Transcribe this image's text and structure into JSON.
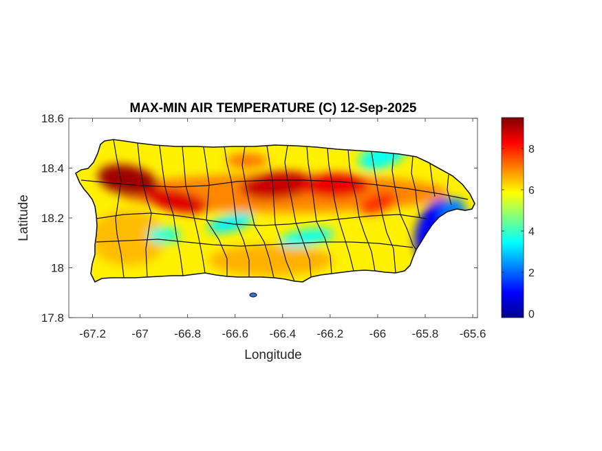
{
  "chart_data": {
    "type": "heatmap",
    "title": "MAX-MIN AIR TEMPERATURE (C) 12-Sep-2025",
    "xlabel": "Longitude",
    "ylabel": "Latitude",
    "xlim": [
      -67.3,
      -65.58
    ],
    "ylim": [
      17.8,
      18.6
    ],
    "xticks": [
      -67.2,
      -67,
      -66.8,
      -66.6,
      -66.4,
      -66.2,
      -66,
      -65.8,
      -65.6
    ],
    "yticks": [
      17.8,
      18,
      18.2,
      18.4,
      18.6
    ],
    "xtick_labels": [
      "-67.2",
      "-67",
      "-66.8",
      "-66.6",
      "-66.4",
      "-66.2",
      "-66",
      "-65.8",
      "-65.6"
    ],
    "ytick_labels": [
      "17.8",
      "18",
      "18.2",
      "18.4",
      "18.6"
    ],
    "colorbar": {
      "colormap": "jet",
      "range": [
        -0.2,
        9.5
      ],
      "ticks": [
        0,
        2,
        4,
        6,
        8
      ],
      "tick_labels": [
        "0",
        "2",
        "4",
        "6",
        "8"
      ]
    },
    "grid": false,
    "hotspots": [
      {
        "lon": -67.05,
        "lat": 18.35,
        "value": 9.2
      },
      {
        "lon": -66.85,
        "lat": 18.27,
        "value": 8.6
      },
      {
        "lon": -66.42,
        "lat": 18.33,
        "value": 8.8
      },
      {
        "lon": -66.18,
        "lat": 18.33,
        "value": 8.5
      },
      {
        "lon": -66.0,
        "lat": 18.26,
        "value": 7.8
      },
      {
        "lon": -66.55,
        "lat": 18.43,
        "value": 7.2
      }
    ],
    "coldspots": [
      {
        "lon": -65.75,
        "lat": 18.15,
        "value": 1.0
      },
      {
        "lon": -65.68,
        "lat": 18.22,
        "value": 2.2
      },
      {
        "lon": -66.62,
        "lat": 18.18,
        "value": 3.3
      },
      {
        "lon": -66.3,
        "lat": 18.12,
        "value": 3.6
      },
      {
        "lon": -66.9,
        "lat": 18.13,
        "value": 3.8
      },
      {
        "lon": -65.98,
        "lat": 18.45,
        "value": 3.6
      }
    ]
  }
}
